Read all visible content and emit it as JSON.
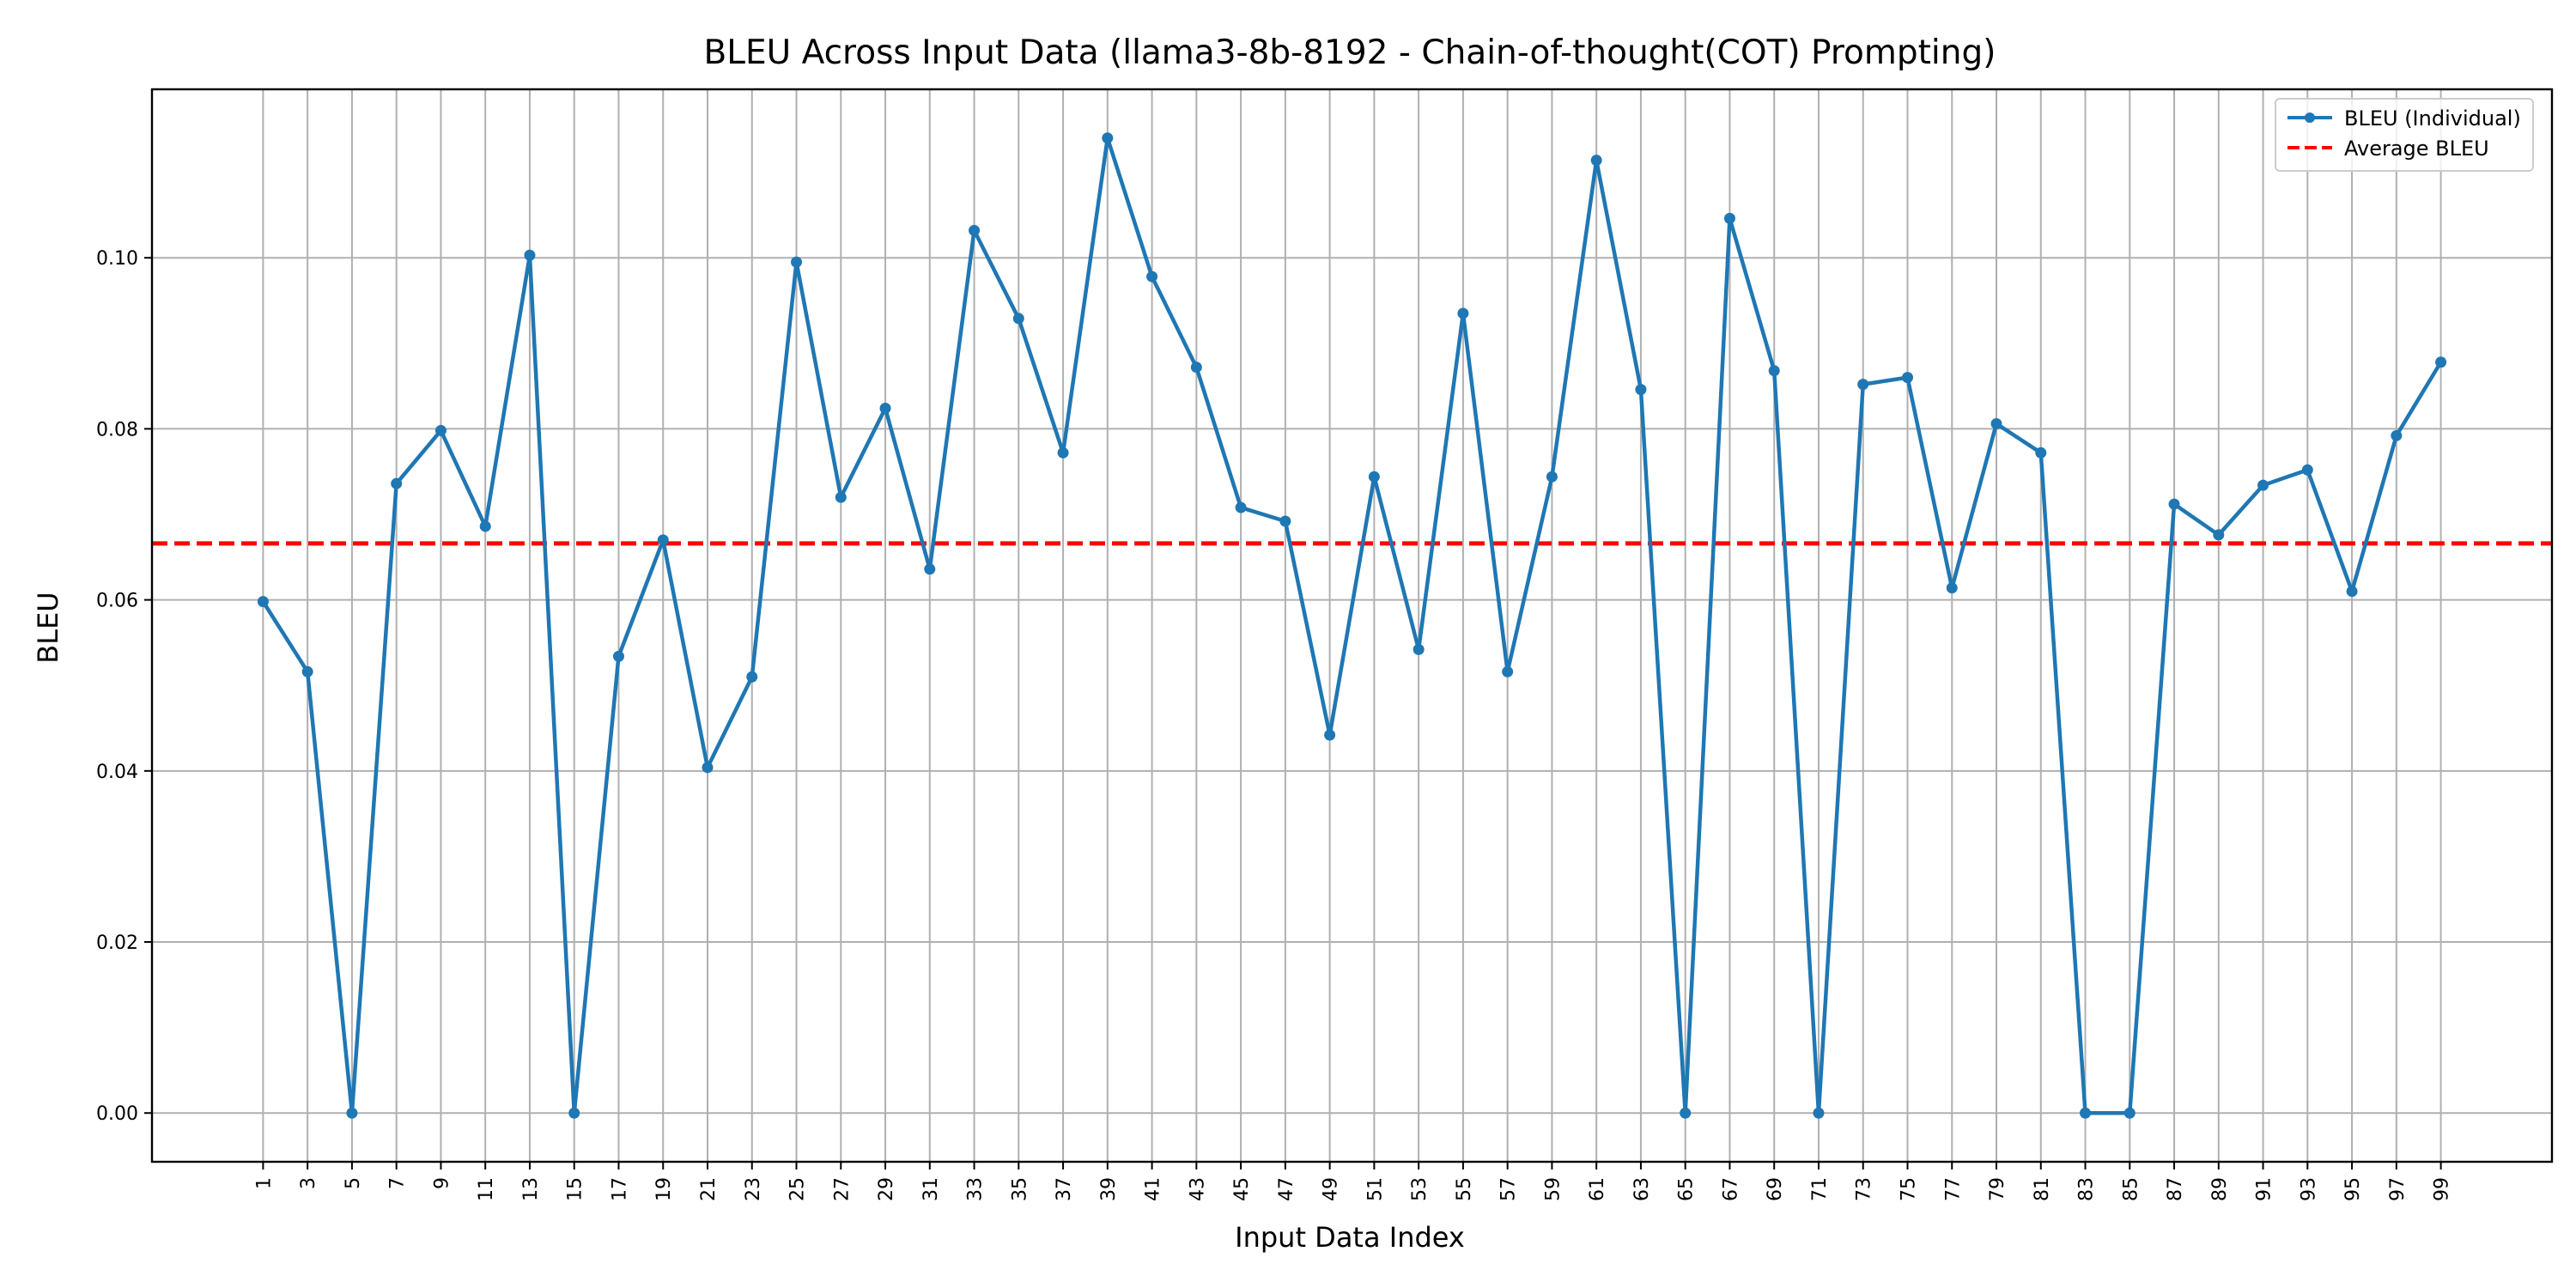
{
  "chart_data": {
    "type": "line",
    "title": "BLEU Across Input Data (llama3-8b-8192 - Chain-of-thought(COT) Prompting)",
    "xlabel": "Input Data Index",
    "ylabel": "BLEU",
    "x": [
      1,
      3,
      5,
      7,
      9,
      11,
      13,
      15,
      17,
      19,
      21,
      23,
      25,
      27,
      29,
      31,
      33,
      35,
      37,
      39,
      41,
      43,
      45,
      47,
      49,
      51,
      53,
      55,
      57,
      59,
      61,
      63,
      65,
      67,
      69,
      71,
      73,
      75,
      77,
      79,
      81,
      83,
      85,
      87,
      89,
      91,
      93,
      95,
      97,
      99
    ],
    "xlim": [
      -4,
      104
    ],
    "ylim": [
      -0.0057,
      0.1197
    ],
    "yticks": [
      0.0,
      0.02,
      0.04,
      0.06,
      0.08,
      0.1
    ],
    "ytick_labels": [
      "0.00",
      "0.02",
      "0.04",
      "0.06",
      "0.08",
      "0.10"
    ],
    "grid": true,
    "legend_position": "top-right",
    "series": [
      {
        "name": "BLEU (Individual)",
        "color": "#1f77b4",
        "style": "solid-with-markers",
        "values": [
          0.0598,
          0.0516,
          0.0,
          0.0736,
          0.0798,
          0.0686,
          0.1003,
          0.0,
          0.0534,
          0.067,
          0.0404,
          0.051,
          0.0995,
          0.072,
          0.0824,
          0.0636,
          0.1032,
          0.0929,
          0.0772,
          0.114,
          0.0978,
          0.0872,
          0.0708,
          0.0692,
          0.0442,
          0.0744,
          0.0542,
          0.0935,
          0.0516,
          0.0744,
          0.1114,
          0.0846,
          0.0,
          0.1046,
          0.0868,
          0.0,
          0.0852,
          0.086,
          0.0614,
          0.0806,
          0.0772,
          0.0,
          0.0,
          0.0712,
          0.0676,
          0.0734,
          0.0752,
          0.061,
          0.0792,
          0.0878
        ]
      },
      {
        "name": "Average BLEU",
        "color": "#ff0000",
        "style": "dashed",
        "value": 0.0666
      }
    ]
  }
}
